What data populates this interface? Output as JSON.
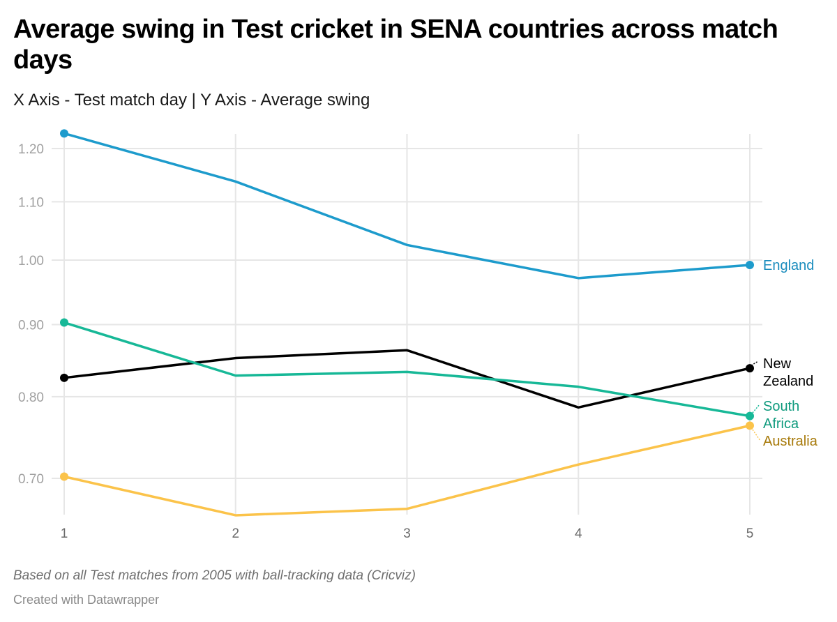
{
  "header": {
    "title": "Average swing in Test cricket in SENA countries across match days",
    "subtitle": "X Axis - Test match day | Y Axis - Average swing"
  },
  "footer": {
    "notes": "Based on all Test matches from 2005 with ball-tracking data (Cricviz)",
    "credit": "Created with Datawrapper"
  },
  "chart_data": {
    "type": "line",
    "title": "Average swing in Test cricket in SENA countries across match days",
    "subtitle": "X Axis - Test match day | Y Axis - Average swing",
    "xlabel": "Test match day",
    "ylabel": "Average swing",
    "x": [
      1,
      2,
      3,
      4,
      5
    ],
    "x_tick_labels": [
      "1",
      "2",
      "3",
      "4",
      "5"
    ],
    "y_scale": "log",
    "ylim": [
      0.655,
      1.23
    ],
    "y_ticks": [
      0.7,
      0.8,
      0.9,
      1.0,
      1.1,
      1.2
    ],
    "y_tick_labels": [
      "0.70",
      "0.80",
      "0.90",
      "1.00",
      "1.10",
      "1.20"
    ],
    "grid": true,
    "legend": "direct-labels-right",
    "series": [
      {
        "name": "England",
        "color": "#1d9bcc",
        "label_color": "#1a8cbd",
        "label_lines": [
          "England"
        ],
        "values": [
          1.23,
          1.137,
          1.025,
          0.971,
          0.992
        ]
      },
      {
        "name": "New Zealand",
        "color": "#000000",
        "label_color": "#000000",
        "label_lines": [
          "New",
          "Zealand"
        ],
        "values": [
          0.825,
          0.852,
          0.863,
          0.786,
          0.838
        ]
      },
      {
        "name": "South Africa",
        "color": "#17b897",
        "label_color": "#0e9a7d",
        "label_lines": [
          "South",
          "Africa"
        ],
        "values": [
          0.903,
          0.828,
          0.833,
          0.813,
          0.775
        ]
      },
      {
        "name": "Australia",
        "color": "#fbc34a",
        "label_color": "#a87b0c",
        "label_lines": [
          "Australia"
        ],
        "values": [
          0.702,
          0.659,
          0.666,
          0.716,
          0.763
        ]
      }
    ],
    "footnote": "Based on all Test matches from 2005 with ball-tracking data (Cricviz)",
    "source": "Created with Datawrapper"
  }
}
